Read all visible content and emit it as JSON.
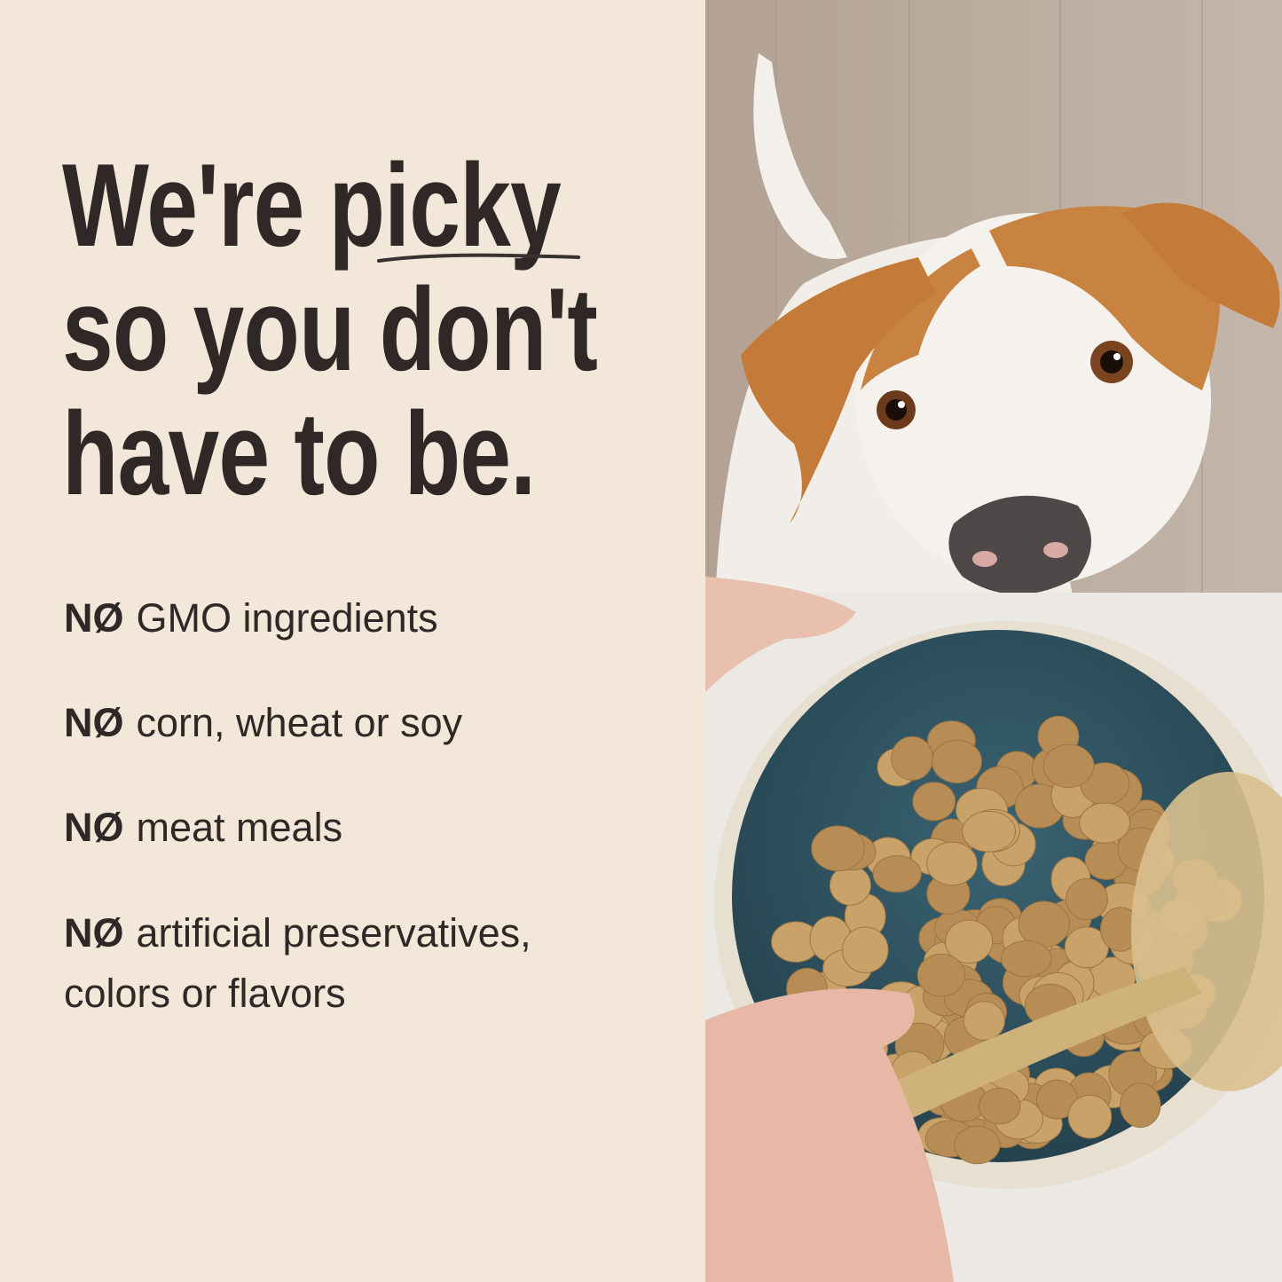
{
  "headline": {
    "lines": [
      "We're picky",
      "so you don't",
      "have to be."
    ],
    "line1_plain": "We're ",
    "line1_underlined": "picky"
  },
  "claims": [
    {
      "prefix": "NØ",
      "text": "GMO ingredients"
    },
    {
      "prefix": "NØ",
      "text": "corn, wheat or soy"
    },
    {
      "prefix": "NØ",
      "text": "meat meals"
    },
    {
      "prefix": "NØ",
      "text": "artificial preservatives,",
      "text2": "colors or flavors"
    }
  ],
  "colors": {
    "background": "#f2e7d9",
    "text": "#2f2826",
    "wall": "#b9a99b",
    "dog_orange": "#c98340",
    "bowl_teal": "#2f5563",
    "kibble": "#c9a26a"
  },
  "photo": {
    "subject": "dog-looking-at-food-bowl"
  }
}
